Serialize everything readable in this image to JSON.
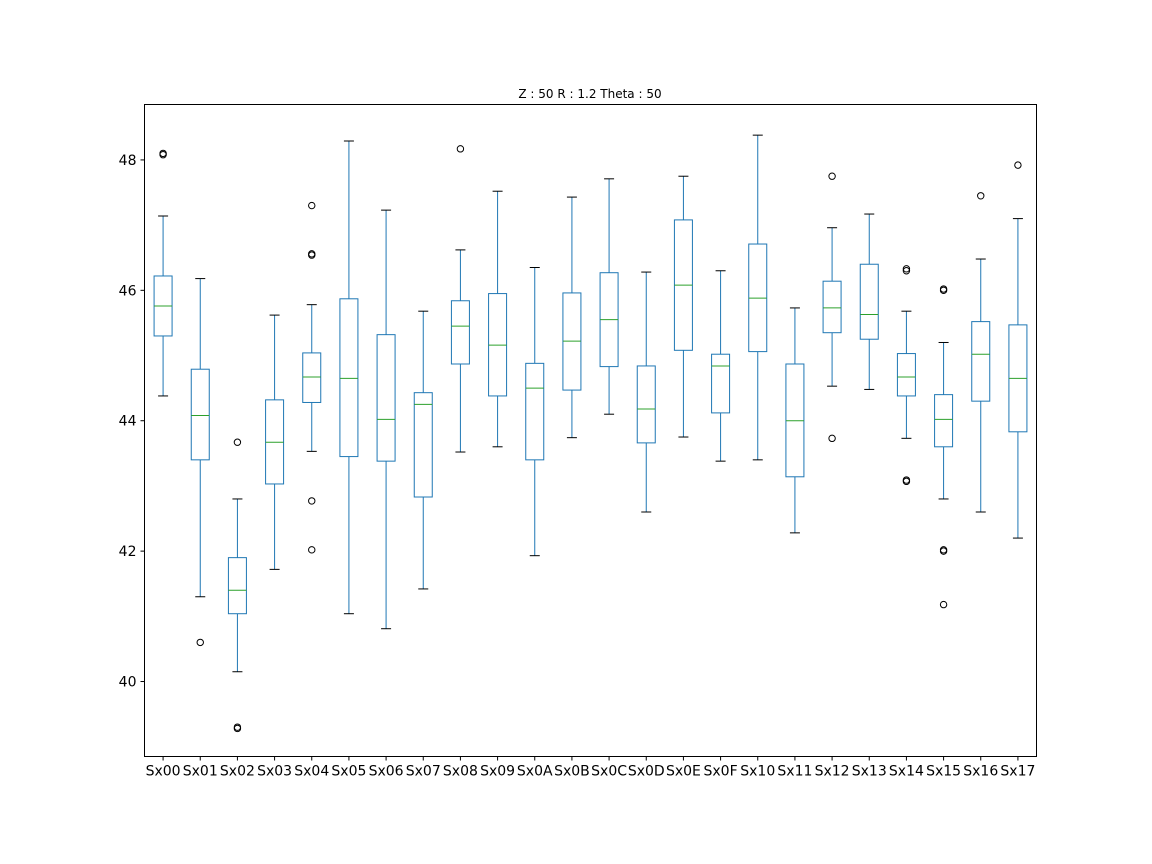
{
  "chart_data": {
    "type": "box",
    "title": "Z : 50 R : 1.2  Theta : 50",
    "xlabel": "",
    "ylabel": "",
    "ylim": [
      38.85,
      48.85
    ],
    "yticks": [
      40,
      42,
      44,
      46,
      48
    ],
    "grid": false,
    "colors": {
      "box": "#1f77b4",
      "median": "#2ca02c",
      "whisker_cap": "#000000",
      "flier": "#000000"
    },
    "categories": [
      "Sx00",
      "Sx01",
      "Sx02",
      "Sx03",
      "Sx04",
      "Sx05",
      "Sx06",
      "Sx07",
      "Sx08",
      "Sx09",
      "Sx0A",
      "Sx0B",
      "Sx0C",
      "Sx0D",
      "Sx0E",
      "Sx0F",
      "Sx10",
      "Sx11",
      "Sx12",
      "Sx13",
      "Sx14",
      "Sx15",
      "Sx16",
      "Sx17"
    ],
    "boxes": [
      {
        "label": "Sx00",
        "whislo": 44.38,
        "q1": 45.3,
        "med": 45.76,
        "q3": 46.22,
        "whishi": 47.14,
        "fliers": [
          48.08,
          48.1
        ]
      },
      {
        "label": "Sx01",
        "whislo": 41.3,
        "q1": 43.4,
        "med": 44.08,
        "q3": 44.79,
        "whishi": 46.18,
        "fliers": [
          40.6
        ]
      },
      {
        "label": "Sx02",
        "whislo": 40.15,
        "q1": 41.04,
        "med": 41.4,
        "q3": 41.9,
        "whishi": 42.8,
        "fliers": [
          43.67,
          39.28,
          39.3
        ]
      },
      {
        "label": "Sx03",
        "whislo": 41.72,
        "q1": 43.03,
        "med": 43.67,
        "q3": 44.32,
        "whishi": 45.62,
        "fliers": []
      },
      {
        "label": "Sx04",
        "whislo": 43.53,
        "q1": 44.28,
        "med": 44.67,
        "q3": 45.04,
        "whishi": 45.78,
        "fliers": [
          47.3,
          46.56,
          46.54,
          42.77,
          42.02
        ]
      },
      {
        "label": "Sx05",
        "whislo": 41.04,
        "q1": 43.45,
        "med": 44.65,
        "q3": 45.87,
        "whishi": 48.29,
        "fliers": []
      },
      {
        "label": "Sx06",
        "whislo": 40.81,
        "q1": 43.38,
        "med": 44.02,
        "q3": 45.32,
        "whishi": 47.23,
        "fliers": []
      },
      {
        "label": "Sx07",
        "whislo": 41.42,
        "q1": 42.83,
        "med": 44.25,
        "q3": 44.43,
        "whishi": 45.68,
        "fliers": []
      },
      {
        "label": "Sx08",
        "whislo": 43.52,
        "q1": 44.87,
        "med": 45.45,
        "q3": 45.84,
        "whishi": 46.62,
        "fliers": [
          48.17
        ]
      },
      {
        "label": "Sx09",
        "whislo": 43.6,
        "q1": 44.38,
        "med": 45.16,
        "q3": 45.95,
        "whishi": 47.52,
        "fliers": []
      },
      {
        "label": "Sx0A",
        "whislo": 41.93,
        "q1": 43.4,
        "med": 44.5,
        "q3": 44.88,
        "whishi": 46.35,
        "fliers": []
      },
      {
        "label": "Sx0B",
        "whislo": 43.74,
        "q1": 44.47,
        "med": 45.22,
        "q3": 45.96,
        "whishi": 47.43,
        "fliers": []
      },
      {
        "label": "Sx0C",
        "whislo": 44.1,
        "q1": 44.83,
        "med": 45.55,
        "q3": 46.27,
        "whishi": 47.71,
        "fliers": []
      },
      {
        "label": "Sx0D",
        "whislo": 42.6,
        "q1": 43.66,
        "med": 44.18,
        "q3": 44.84,
        "whishi": 46.28,
        "fliers": []
      },
      {
        "label": "Sx0E",
        "whislo": 43.75,
        "q1": 45.08,
        "med": 46.08,
        "q3": 47.08,
        "whishi": 47.75,
        "fliers": []
      },
      {
        "label": "Sx0F",
        "whislo": 43.38,
        "q1": 44.12,
        "med": 44.84,
        "q3": 45.02,
        "whishi": 46.3,
        "fliers": []
      },
      {
        "label": "Sx10",
        "whislo": 43.4,
        "q1": 45.06,
        "med": 45.88,
        "q3": 46.71,
        "whishi": 48.38,
        "fliers": []
      },
      {
        "label": "Sx11",
        "whislo": 42.28,
        "q1": 43.14,
        "med": 44.0,
        "q3": 44.87,
        "whishi": 45.73,
        "fliers": []
      },
      {
        "label": "Sx12",
        "whislo": 44.53,
        "q1": 45.35,
        "med": 45.73,
        "q3": 46.14,
        "whishi": 46.96,
        "fliers": [
          47.75,
          43.73
        ]
      },
      {
        "label": "Sx13",
        "whislo": 44.48,
        "q1": 45.25,
        "med": 45.63,
        "q3": 46.4,
        "whishi": 47.17,
        "fliers": []
      },
      {
        "label": "Sx14",
        "whislo": 43.73,
        "q1": 44.38,
        "med": 44.67,
        "q3": 45.03,
        "whishi": 45.68,
        "fliers": [
          46.33,
          46.3,
          43.09,
          43.07
        ]
      },
      {
        "label": "Sx15",
        "whislo": 42.8,
        "q1": 43.6,
        "med": 44.02,
        "q3": 44.4,
        "whishi": 45.2,
        "fliers": [
          46.0,
          46.02,
          42.0,
          42.02,
          41.18
        ]
      },
      {
        "label": "Sx16",
        "whislo": 42.6,
        "q1": 44.3,
        "med": 45.02,
        "q3": 45.52,
        "whishi": 46.48,
        "fliers": [
          47.45
        ]
      },
      {
        "label": "Sx17",
        "whislo": 42.2,
        "q1": 43.83,
        "med": 44.65,
        "q3": 45.47,
        "whishi": 47.1,
        "fliers": [
          47.92
        ]
      }
    ]
  }
}
